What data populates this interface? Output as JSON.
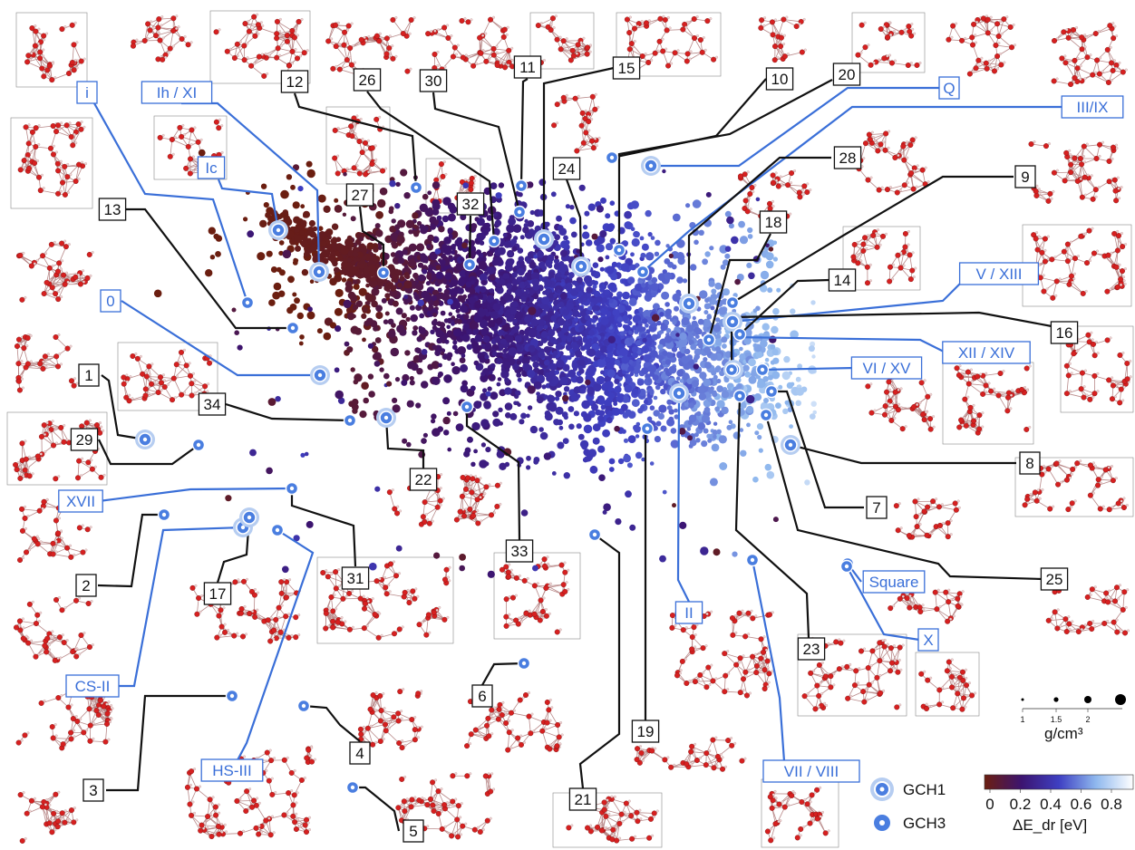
{
  "chart_data": {
    "type": "scatter",
    "title": "",
    "xlabel": "",
    "ylabel": "",
    "colorbar": {
      "label": "ΔE_dr [eV]",
      "ticks": [
        "0",
        "0.2",
        "0.4",
        "0.6",
        "0.8"
      ],
      "range": [
        0,
        0.9
      ],
      "colors": [
        "#6b1e10",
        "#3c1470",
        "#3e3fc2",
        "#8fb8ee",
        "#ffffff"
      ]
    },
    "size_legend": {
      "label": "g/cm³",
      "ticks": [
        "1",
        "1.5",
        "2"
      ],
      "values": [
        1,
        1.5,
        2,
        2.5
      ]
    },
    "marker_legend": [
      {
        "name": "GCH1",
        "style": "ring-large"
      },
      {
        "name": "GCH3",
        "style": "ring-small"
      }
    ],
    "colors": {
      "blue_label": "#3a6fd8",
      "black_label": "#111111",
      "atom_oxygen": "#d62020",
      "atom_hydrogen": "#f3d4d4"
    },
    "labels": [
      {
        "text": "i",
        "color": "blue",
        "marker": "GCH3"
      },
      {
        "text": "Ih / XI",
        "color": "blue",
        "marker": "GCH1"
      },
      {
        "text": "Ic",
        "color": "blue",
        "marker": "GCH1"
      },
      {
        "text": "0",
        "color": "blue",
        "marker": "GCH1"
      },
      {
        "text": "XVII",
        "color": "blue",
        "marker": "GCH3"
      },
      {
        "text": "CS-II",
        "color": "blue",
        "marker": "GCH1"
      },
      {
        "text": "HS-III",
        "color": "blue",
        "marker": "GCH3"
      },
      {
        "text": "Q",
        "color": "blue",
        "marker": "GCH1"
      },
      {
        "text": "III/IX",
        "color": "blue",
        "marker": "GCH3"
      },
      {
        "text": "V / XIII",
        "color": "blue",
        "marker": "GCH1"
      },
      {
        "text": "XII / XIV",
        "color": "blue",
        "marker": "GCH1"
      },
      {
        "text": "VI / XV",
        "color": "blue",
        "marker": "GCH3"
      },
      {
        "text": "II",
        "color": "blue",
        "marker": "GCH1"
      },
      {
        "text": "Square",
        "color": "blue",
        "marker": "GCH3"
      },
      {
        "text": "X",
        "color": "blue",
        "marker": "GCH3"
      },
      {
        "text": "VII / VIII",
        "color": "blue",
        "marker": "GCH3"
      },
      {
        "text": "12",
        "color": "black",
        "marker": "GCH3"
      },
      {
        "text": "26",
        "color": "black",
        "marker": "GCH3"
      },
      {
        "text": "30",
        "color": "black",
        "marker": "GCH3"
      },
      {
        "text": "11",
        "color": "black",
        "marker": "GCH3"
      },
      {
        "text": "15",
        "color": "black",
        "marker": "GCH1"
      },
      {
        "text": "10",
        "color": "black",
        "marker": "GCH3"
      },
      {
        "text": "20",
        "color": "black",
        "marker": "GCH3"
      },
      {
        "text": "24",
        "color": "black",
        "marker": "GCH1"
      },
      {
        "text": "32",
        "color": "black",
        "marker": "GCH3"
      },
      {
        "text": "27",
        "color": "black",
        "marker": "GCH3"
      },
      {
        "text": "28",
        "color": "black",
        "marker": "GCH1"
      },
      {
        "text": "18",
        "color": "black",
        "marker": "GCH3"
      },
      {
        "text": "9",
        "color": "black",
        "marker": "GCH3"
      },
      {
        "text": "14",
        "color": "black",
        "marker": "GCH3"
      },
      {
        "text": "16",
        "color": "black",
        "marker": "GCH3"
      },
      {
        "text": "13",
        "color": "black",
        "marker": "GCH3"
      },
      {
        "text": "1",
        "color": "black",
        "marker": "GCH1"
      },
      {
        "text": "29",
        "color": "black",
        "marker": "GCH3"
      },
      {
        "text": "34",
        "color": "black",
        "marker": "GCH3"
      },
      {
        "text": "22",
        "color": "black",
        "marker": "GCH1"
      },
      {
        "text": "33",
        "color": "black",
        "marker": "GCH3"
      },
      {
        "text": "8",
        "color": "black",
        "marker": "GCH1"
      },
      {
        "text": "7",
        "color": "black",
        "marker": "GCH3"
      },
      {
        "text": "25",
        "color": "black",
        "marker": "GCH3"
      },
      {
        "text": "2",
        "color": "black",
        "marker": "GCH3"
      },
      {
        "text": "17",
        "color": "black",
        "marker": "GCH1"
      },
      {
        "text": "31",
        "color": "black",
        "marker": "GCH3"
      },
      {
        "text": "19",
        "color": "black",
        "marker": "GCH3"
      },
      {
        "text": "23",
        "color": "black",
        "marker": "GCH3"
      },
      {
        "text": "3",
        "color": "black",
        "marker": "GCH3"
      },
      {
        "text": "4",
        "color": "black",
        "marker": "GCH3"
      },
      {
        "text": "6",
        "color": "black",
        "marker": "GCH3"
      },
      {
        "text": "5",
        "color": "black",
        "marker": "GCH3"
      },
      {
        "text": "21",
        "color": "black",
        "marker": "GCH3"
      }
    ]
  }
}
